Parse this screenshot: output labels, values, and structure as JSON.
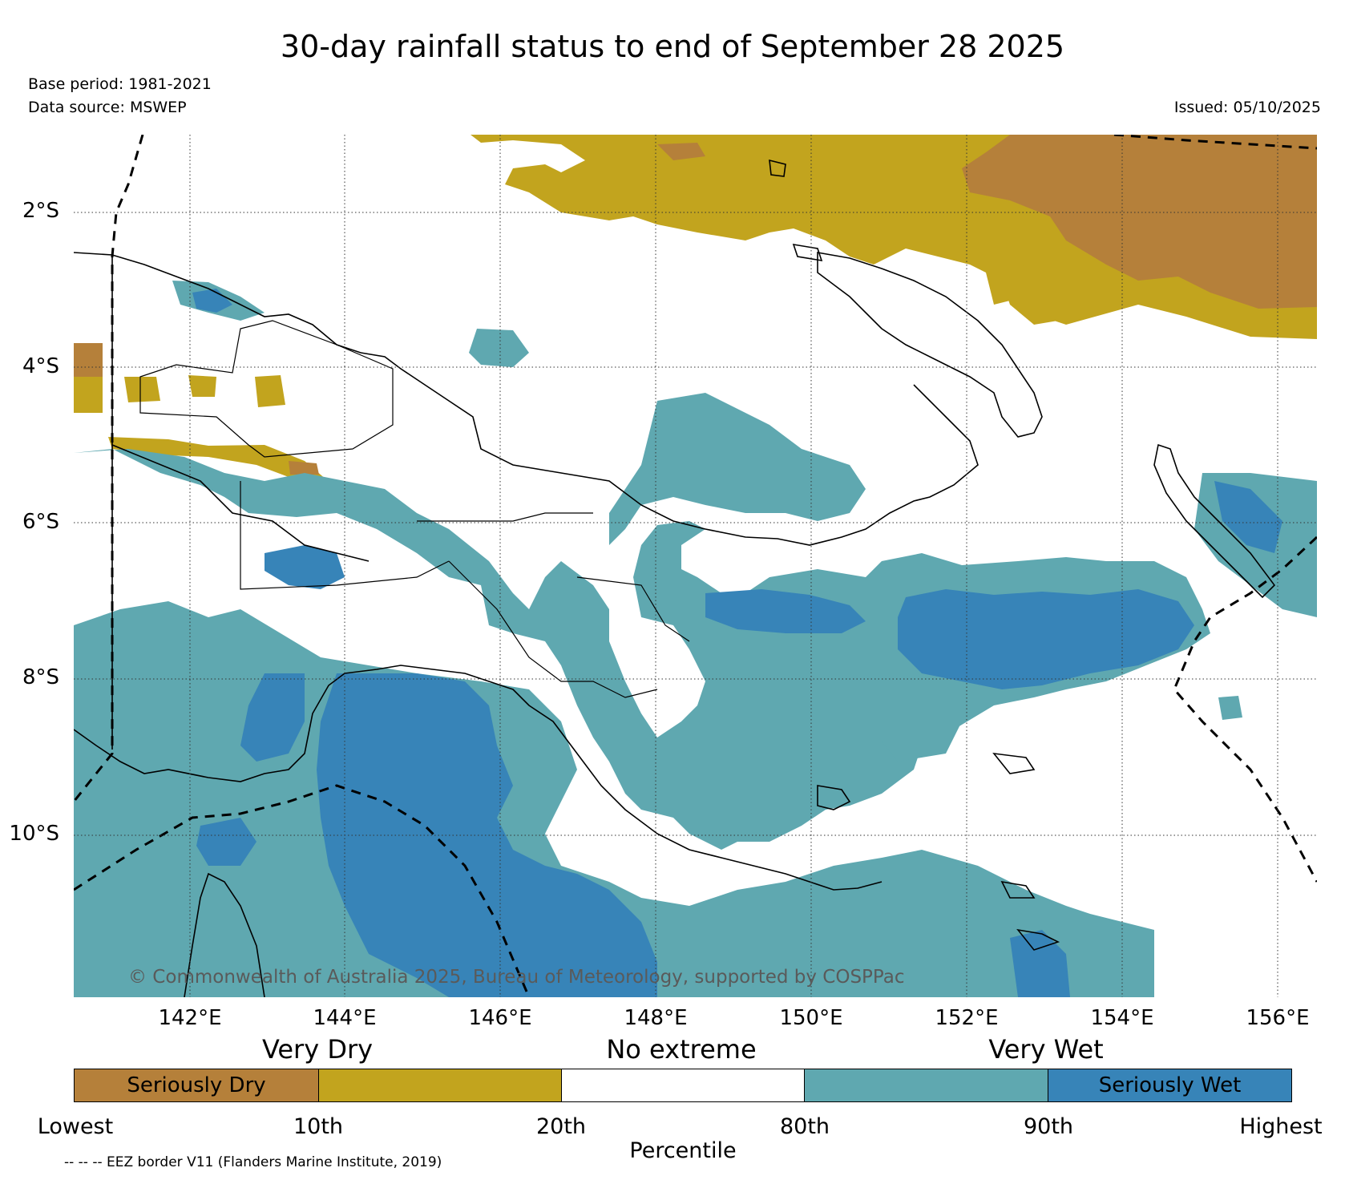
{
  "header": {
    "title": "30-day rainfall status to end of September 28 2025",
    "base_period": "Base period: 1981-2021",
    "data_source": "Data source: MSWEP",
    "issued": "Issued: 05/10/2025"
  },
  "map": {
    "lat_labels": [
      "2°S",
      "4°S",
      "6°S",
      "8°S",
      "10°S"
    ],
    "lon_labels": [
      "142°E",
      "144°E",
      "146°E",
      "148°E",
      "150°E",
      "152°E",
      "154°E",
      "156°E"
    ],
    "credit": "© Commonwealth of Australia 2025, Bureau of Meteorology, supported by COSPPac",
    "colors": {
      "seriously_dry": "#b5803a",
      "very_dry": "#c2a41e",
      "no_extreme": "#ffffff",
      "very_wet": "#5fa8b0",
      "seriously_wet": "#3784b8"
    }
  },
  "legend": {
    "categories": [
      "Very Dry",
      "No extreme",
      "Very Wet"
    ],
    "bars": [
      "Seriously Dry",
      "",
      "",
      "",
      "Seriously Wet"
    ],
    "ticks": [
      "Lowest",
      "10th",
      "20th",
      "80th",
      "90th",
      "Highest"
    ],
    "axis_label": "Percentile"
  },
  "footnote": "-- -- -- EEZ border V11 (Flanders Marine Institute, 2019)"
}
